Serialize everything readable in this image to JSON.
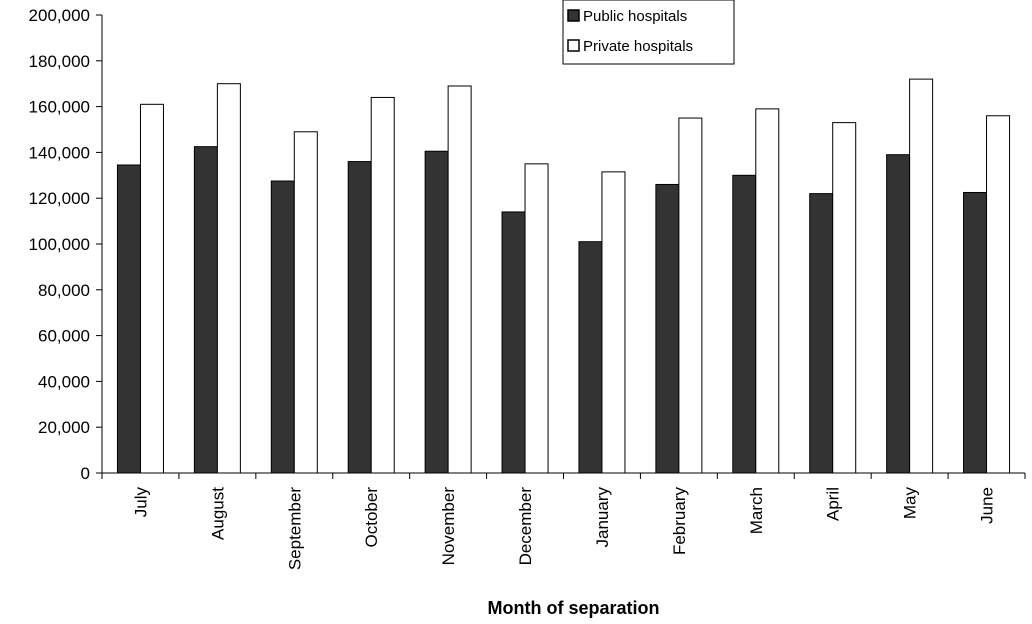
{
  "chart_data": {
    "type": "bar",
    "xlabel": "Month of separation",
    "ylabel": "",
    "ylim": [
      0,
      200000
    ],
    "yticks": [
      "0",
      "20,000",
      "40,000",
      "60,000",
      "80,000",
      "100,000",
      "120,000",
      "140,000",
      "160,000",
      "180,000",
      "200,000"
    ],
    "ytick_values": [
      0,
      20000,
      40000,
      60000,
      80000,
      100000,
      120000,
      140000,
      160000,
      180000,
      200000
    ],
    "grid": false,
    "legend_placement": "top-right",
    "categories": [
      "July",
      "August",
      "September",
      "October",
      "November",
      "December",
      "January",
      "February",
      "March",
      "April",
      "May",
      "June"
    ],
    "series": [
      {
        "name": "Public hospitals",
        "color": "#333333",
        "values": [
          134500,
          142500,
          127500,
          136000,
          140500,
          114000,
          101000,
          126000,
          130000,
          122000,
          139000,
          122500
        ]
      },
      {
        "name": "Private hospitals",
        "color": "#ffffff",
        "values": [
          161000,
          170000,
          149000,
          164000,
          169000,
          135000,
          131500,
          155000,
          159000,
          153000,
          172000,
          156000
        ]
      }
    ]
  }
}
